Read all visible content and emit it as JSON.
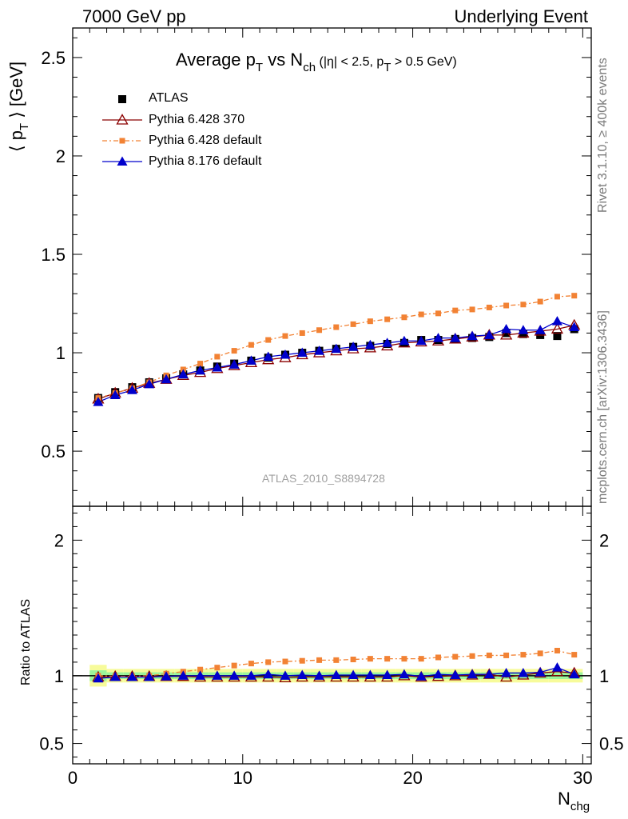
{
  "header": {
    "left": "7000 GeV pp",
    "right": "Underlying Event"
  },
  "side_labels": {
    "rivet": "Rivet 3.1.10, ≥ 400k events",
    "mcplots": "mcplots.cern.ch [arXiv:1306.3436]"
  },
  "plot_title": {
    "main_a": "Average p",
    "main_a_sub": "T",
    "main_b": " vs N",
    "main_b_sub": "ch",
    "cut_a": " (|η| < 2.5, p",
    "cut_a_sub": "T",
    "cut_b": " > 0.5 GeV)"
  },
  "watermark": "ATLAS_2010_S8894728",
  "chart_data": {
    "type": "line",
    "x_label": "N",
    "x_label_sub": "chg",
    "y_label_a": "⟨ p",
    "y_label_sub": "T",
    "y_label_b": " ⟩ [GeV]",
    "ratio_y_label": "Ratio to ATLAS",
    "xlim": [
      0,
      30.5
    ],
    "ylim": [
      0.22,
      2.65
    ],
    "ratio_ylim": [
      0.35,
      2.25
    ],
    "x_ticks": [
      "0",
      "10",
      "20",
      "30"
    ],
    "y_ticks": [
      "0.5",
      "1",
      "1.5",
      "2",
      "2.5"
    ],
    "ratio_y_ticks": [
      "0.5",
      "1",
      "2"
    ],
    "x": [
      1.5,
      2.5,
      3.5,
      4.5,
      5.5,
      6.5,
      7.5,
      8.5,
      9.5,
      10.5,
      11.5,
      12.5,
      13.5,
      14.5,
      15.5,
      16.5,
      17.5,
      18.5,
      19.5,
      20.5,
      21.5,
      22.5,
      23.5,
      24.5,
      25.5,
      26.5,
      27.5,
      28.5,
      29.5
    ],
    "series": [
      {
        "name": "ATLAS",
        "color": "#000000",
        "marker": "square",
        "values": [
          0.77,
          0.8,
          0.825,
          0.85,
          0.87,
          0.89,
          0.91,
          0.93,
          0.945,
          0.96,
          0.975,
          0.99,
          1.0,
          1.01,
          1.02,
          1.03,
          1.035,
          1.045,
          1.05,
          1.065,
          1.065,
          1.07,
          1.075,
          1.08,
          1.1,
          1.095,
          1.09,
          1.085,
          1.12
        ],
        "ratio_band_inner": 0.025,
        "ratio_band_outer": 0.05
      },
      {
        "name": "Pythia 6.428 370",
        "color": "#8b0000",
        "marker": "open-triangle",
        "values": [
          0.765,
          0.795,
          0.82,
          0.845,
          0.865,
          0.885,
          0.9,
          0.92,
          0.935,
          0.95,
          0.965,
          0.975,
          0.99,
          1.0,
          1.01,
          1.02,
          1.025,
          1.035,
          1.05,
          1.055,
          1.06,
          1.07,
          1.08,
          1.09,
          1.09,
          1.1,
          1.11,
          1.12,
          1.14
        ],
        "ratio": [
          0.99,
          0.995,
          0.995,
          0.995,
          0.995,
          0.995,
          0.99,
          0.99,
          0.99,
          0.99,
          0.99,
          0.985,
          0.99,
          0.99,
          0.99,
          0.99,
          0.99,
          0.99,
          1.0,
          0.99,
          0.995,
          1.0,
          1.005,
          1.01,
          0.99,
          1.005,
          1.02,
          1.03,
          1.02
        ]
      },
      {
        "name": "Pythia 6.428 default",
        "color": "#f28234",
        "marker": "small-square",
        "values": [
          0.77,
          0.795,
          0.82,
          0.85,
          0.885,
          0.915,
          0.945,
          0.98,
          1.01,
          1.04,
          1.065,
          1.085,
          1.1,
          1.115,
          1.13,
          1.145,
          1.16,
          1.17,
          1.18,
          1.195,
          1.2,
          1.215,
          1.22,
          1.23,
          1.24,
          1.245,
          1.26,
          1.285,
          1.29
        ],
        "ratio": [
          1.0,
          0.995,
          0.995,
          1.0,
          1.015,
          1.03,
          1.045,
          1.06,
          1.075,
          1.09,
          1.1,
          1.105,
          1.11,
          1.115,
          1.115,
          1.12,
          1.125,
          1.125,
          1.125,
          1.125,
          1.135,
          1.14,
          1.145,
          1.15,
          1.15,
          1.155,
          1.165,
          1.185,
          1.155
        ]
      },
      {
        "name": "Pythia 8.176 default",
        "color": "#0000cc",
        "marker": "filled-triangle",
        "values": [
          0.75,
          0.785,
          0.81,
          0.84,
          0.865,
          0.89,
          0.91,
          0.925,
          0.94,
          0.96,
          0.98,
          0.99,
          1.0,
          1.01,
          1.02,
          1.03,
          1.04,
          1.05,
          1.06,
          1.06,
          1.075,
          1.075,
          1.085,
          1.09,
          1.12,
          1.115,
          1.115,
          1.16,
          1.13
        ],
        "ratio": [
          0.98,
          0.99,
          0.99,
          0.99,
          0.995,
          1.0,
          1.0,
          1.0,
          1.0,
          1.0,
          1.01,
          1.0,
          1.005,
          1.0,
          1.005,
          1.005,
          1.005,
          1.005,
          1.01,
          0.995,
          1.01,
          1.005,
          1.01,
          1.01,
          1.02,
          1.02,
          1.025,
          1.06,
          1.01
        ]
      }
    ],
    "legend_position": "top-left"
  }
}
